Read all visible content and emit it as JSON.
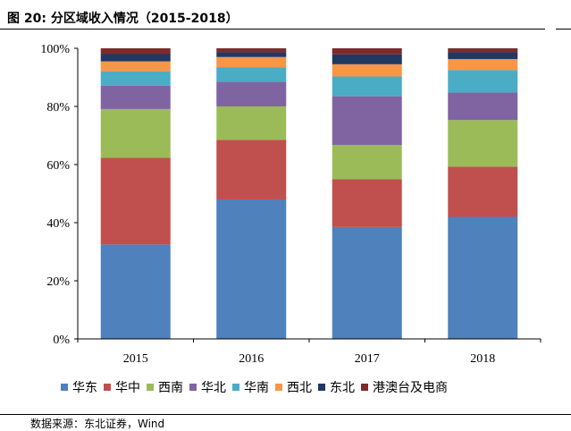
{
  "header": {
    "title": "图 20: 分区域收入情况（2015-2018）"
  },
  "footer": {
    "source": "数据来源：东北证券，Wind"
  },
  "chart_data": {
    "type": "bar",
    "stacked": true,
    "title": "",
    "xlabel": "",
    "ylabel": "",
    "ylim": [
      0,
      100
    ],
    "y_unit": "%",
    "y_ticks": [
      "0%",
      "20%",
      "40%",
      "60%",
      "80%",
      "100%"
    ],
    "grid": false,
    "legend_position": "bottom",
    "categories": [
      "2015",
      "2016",
      "2017",
      "2018"
    ],
    "series": [
      {
        "name": "华东",
        "color": "#4F81BD",
        "values": [
          32.5,
          48.0,
          38.5,
          42.0
        ]
      },
      {
        "name": "华中",
        "color": "#C0504D",
        "values": [
          29.8,
          20.5,
          16.5,
          17.3
        ]
      },
      {
        "name": "西南",
        "color": "#9BBB59",
        "values": [
          16.8,
          11.5,
          11.7,
          16.0
        ]
      },
      {
        "name": "华北",
        "color": "#8064A2",
        "values": [
          8.0,
          8.5,
          16.8,
          9.5
        ]
      },
      {
        "name": "华南",
        "color": "#4BACC6",
        "values": [
          5.0,
          5.0,
          6.8,
          7.7
        ]
      },
      {
        "name": "西北",
        "color": "#F79646",
        "values": [
          3.4,
          3.5,
          4.2,
          3.8
        ]
      },
      {
        "name": "东北",
        "color": "#1F3864",
        "values": [
          2.5,
          1.6,
          3.4,
          2.3
        ]
      },
      {
        "name": "港澳台及电商",
        "color": "#7B2C2C",
        "values": [
          2.0,
          1.4,
          2.1,
          1.4
        ]
      }
    ]
  }
}
